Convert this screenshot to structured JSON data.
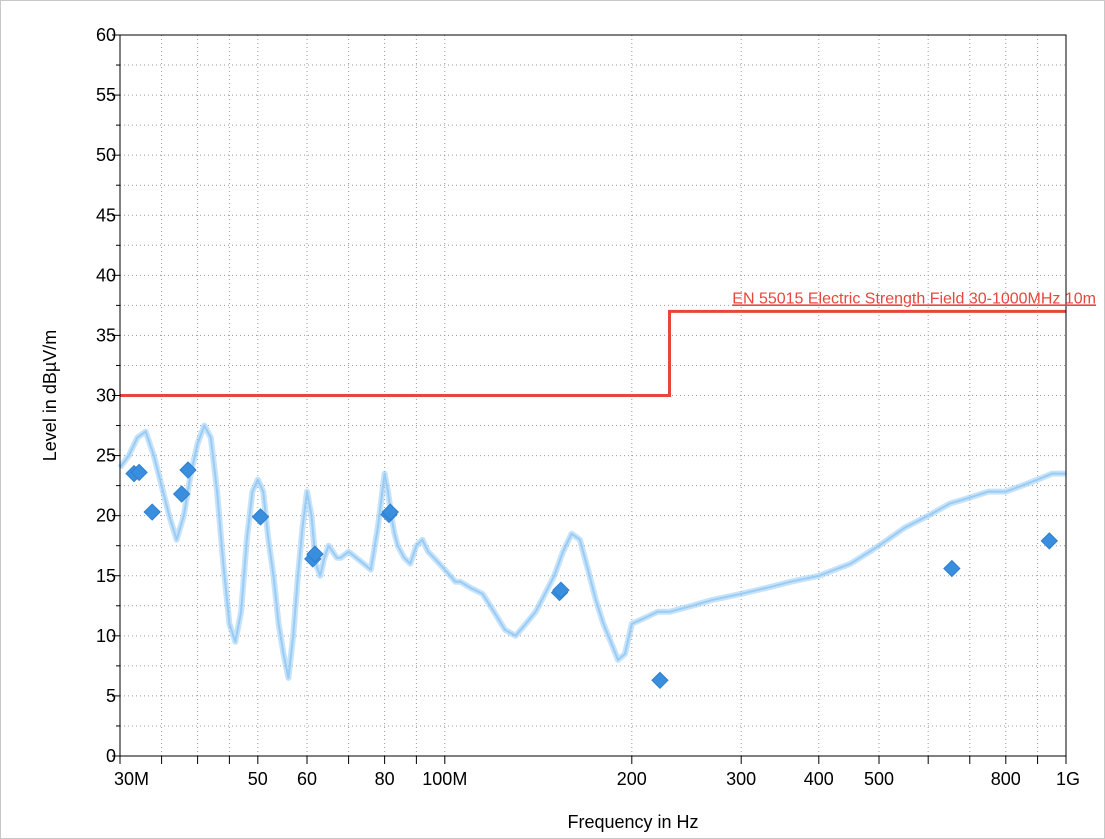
{
  "chart_data": {
    "type": "line",
    "title": "",
    "xlabel": "Frequency in Hz",
    "ylabel": "Level in dBµV/m",
    "x_scale": "log",
    "xlim": [
      30,
      1000
    ],
    "ylim": [
      0,
      60
    ],
    "grid": true,
    "x_ticks": [
      {
        "value": 30,
        "label": "30M"
      },
      {
        "value": 50,
        "label": "50"
      },
      {
        "value": 60,
        "label": "60"
      },
      {
        "value": 80,
        "label": "80"
      },
      {
        "value": 100,
        "label": "100M"
      },
      {
        "value": 200,
        "label": "200"
      },
      {
        "value": 300,
        "label": "300"
      },
      {
        "value": 400,
        "label": "400"
      },
      {
        "value": 500,
        "label": "500"
      },
      {
        "value": 800,
        "label": "800"
      },
      {
        "value": 1000,
        "label": "1G"
      }
    ],
    "y_ticks": [
      0,
      5,
      10,
      15,
      20,
      25,
      30,
      35,
      40,
      45,
      50,
      55,
      60
    ],
    "limit_line": {
      "name": "EN 55015 Electric Strength Field 30-1000MHz 10m",
      "color": "#e8453c",
      "x": [
        30,
        230,
        230,
        1000
      ],
      "y": [
        30,
        30,
        37,
        37
      ]
    },
    "series": [
      {
        "type": "line",
        "color": "#99ccf5",
        "x": [
          30,
          31,
          32,
          33,
          34,
          35,
          36,
          37,
          38,
          39,
          40,
          41,
          42,
          43,
          44,
          45,
          46,
          47,
          48,
          49,
          50,
          51,
          52,
          53,
          54,
          55,
          56,
          57,
          58,
          59,
          60,
          61,
          62,
          63,
          64,
          65,
          66,
          67,
          68,
          70,
          72,
          74,
          76,
          78,
          80,
          81,
          82,
          83,
          84,
          86,
          88,
          90,
          92,
          94,
          96,
          98,
          100,
          102,
          104,
          106,
          110,
          115,
          120,
          125,
          130,
          135,
          140,
          145,
          150,
          155,
          160,
          165,
          170,
          175,
          180,
          185,
          190,
          195,
          200,
          210,
          220,
          230,
          250,
          270,
          300,
          330,
          360,
          400,
          450,
          500,
          550,
          600,
          650,
          700,
          750,
          800,
          850,
          900,
          950,
          1000
        ],
        "y": [
          24,
          25,
          26.5,
          27,
          25,
          22.5,
          20,
          18,
          20,
          23.5,
          26,
          27.5,
          26.5,
          22,
          16,
          11,
          9.5,
          12,
          18,
          22,
          23,
          22,
          18,
          15,
          11,
          8.5,
          6.5,
          10,
          15,
          19,
          22,
          20,
          16,
          15,
          16.5,
          17.5,
          17,
          16.5,
          16.5,
          17,
          16.5,
          16,
          15.5,
          19,
          23.5,
          22,
          20,
          18.5,
          17.5,
          16.5,
          16,
          17.5,
          18,
          17,
          16.5,
          16,
          15.5,
          15,
          14.5,
          14.5,
          14,
          13.5,
          12,
          10.5,
          10,
          11,
          12,
          13.5,
          15,
          17,
          18.5,
          18,
          15.5,
          13,
          11,
          9.5,
          8,
          8.5,
          11,
          11.5,
          12,
          12,
          12.5,
          13,
          13.5,
          14,
          14.5,
          15,
          16,
          17.5,
          19,
          20,
          21,
          21.5,
          22,
          22,
          22.5,
          23,
          23.5,
          23.5
        ]
      }
    ],
    "markers": {
      "type": "scatter",
      "shape": "diamond",
      "color": "#3a8ede",
      "points": [
        {
          "x": 31.6,
          "y": 23.5
        },
        {
          "x": 32.2,
          "y": 23.6
        },
        {
          "x": 33.8,
          "y": 20.3
        },
        {
          "x": 37.7,
          "y": 21.8
        },
        {
          "x": 38.6,
          "y": 23.8
        },
        {
          "x": 50.5,
          "y": 19.9
        },
        {
          "x": 61.3,
          "y": 16.4
        },
        {
          "x": 61.8,
          "y": 16.8
        },
        {
          "x": 81.3,
          "y": 20.1
        },
        {
          "x": 81.7,
          "y": 20.3
        },
        {
          "x": 153,
          "y": 13.6
        },
        {
          "x": 153.8,
          "y": 13.8
        },
        {
          "x": 222,
          "y": 6.3
        },
        {
          "x": 655,
          "y": 15.6
        },
        {
          "x": 940,
          "y": 17.9
        }
      ]
    }
  }
}
